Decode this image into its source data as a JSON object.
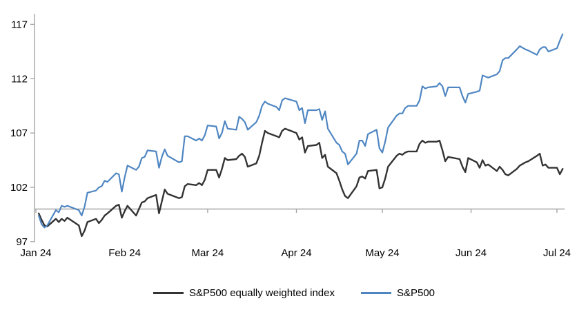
{
  "chart_data": {
    "type": "line",
    "title": "",
    "xlabel": "",
    "ylabel": "",
    "grid": "off",
    "legend_position": "bottom-center",
    "baseline_value": 100,
    "colors": {
      "axis": "#a6a6a6",
      "baseline": "#a6a6a6",
      "tick_label": "#000000",
      "eqw_line": "#333333",
      "sp500_line": "#4f86c2"
    },
    "y_axis": {
      "ticks": [
        97,
        102,
        107,
        112,
        117
      ],
      "min": 97,
      "max": 117
    },
    "x_axis": {
      "tick_labels": [
        "Jan 24",
        "Feb 24",
        "Mar 24",
        "Apr 24",
        "May 24",
        "Jun 24",
        "Jul 24"
      ],
      "tick_month_start_day_of_year": [
        0,
        31,
        60,
        91,
        121,
        152,
        182
      ]
    },
    "dates": [
      "1-2",
      "1-3",
      "1-4",
      "1-5",
      "1-8",
      "1-9",
      "1-10",
      "1-11",
      "1-12",
      "1-16",
      "1-17",
      "1-18",
      "1-19",
      "1-22",
      "1-23",
      "1-24",
      "1-25",
      "1-26",
      "1-29",
      "1-30",
      "1-31",
      "2-1",
      "2-2",
      "2-5",
      "2-6",
      "2-7",
      "2-8",
      "2-9",
      "2-12",
      "2-13",
      "2-14",
      "2-15",
      "2-16",
      "2-20",
      "2-21",
      "2-22",
      "2-23",
      "2-26",
      "2-27",
      "2-28",
      "2-29",
      "3-1",
      "3-4",
      "3-5",
      "3-6",
      "3-7",
      "3-8",
      "3-11",
      "3-12",
      "3-13",
      "3-14",
      "3-15",
      "3-18",
      "3-19",
      "3-20",
      "3-21",
      "3-22",
      "3-25",
      "3-26",
      "3-27",
      "3-28",
      "4-1",
      "4-2",
      "4-3",
      "4-4",
      "4-5",
      "4-8",
      "4-9",
      "4-10",
      "4-11",
      "4-12",
      "4-15",
      "4-16",
      "4-17",
      "4-18",
      "4-19",
      "4-22",
      "4-23",
      "4-24",
      "4-25",
      "4-26",
      "4-29",
      "4-30",
      "5-1",
      "5-2",
      "5-3",
      "5-6",
      "5-7",
      "5-8",
      "5-9",
      "5-10",
      "5-13",
      "5-14",
      "5-15",
      "5-16",
      "5-17",
      "5-20",
      "5-21",
      "5-22",
      "5-23",
      "5-24",
      "5-28",
      "5-29",
      "5-30",
      "5-31",
      "6-3",
      "6-4",
      "6-5",
      "6-6",
      "6-7",
      "6-10",
      "6-11",
      "6-12",
      "6-13",
      "6-14",
      "6-17",
      "6-18",
      "6-20",
      "6-21",
      "6-24",
      "6-25",
      "6-26",
      "6-27",
      "6-28",
      "7-1",
      "7-2",
      "7-3"
    ],
    "series": [
      {
        "name": "S&P500 equally weighted index",
        "color": "#333333",
        "values": [
          99.6,
          99.0,
          98.5,
          98.4,
          99.1,
          98.8,
          99.1,
          98.9,
          99.2,
          98.5,
          97.5,
          98.0,
          98.8,
          99.1,
          98.7,
          99.0,
          99.4,
          99.6,
          100.3,
          100.4,
          99.2,
          99.8,
          100.3,
          99.4,
          100.0,
          100.6,
          100.7,
          101.0,
          101.3,
          99.6,
          100.7,
          101.8,
          101.4,
          101.0,
          101.1,
          102.1,
          102.3,
          102.2,
          102.4,
          102.2,
          102.7,
          103.6,
          103.6,
          102.9,
          103.7,
          104.7,
          104.5,
          104.6,
          104.9,
          105.1,
          104.8,
          103.9,
          104.2,
          104.9,
          106.1,
          107.2,
          107.0,
          106.7,
          106.6,
          107.2,
          107.4,
          107.0,
          106.4,
          106.6,
          105.2,
          105.8,
          105.9,
          106.1,
          104.7,
          105.0,
          103.9,
          103.3,
          102.6,
          101.8,
          101.2,
          101.0,
          102.1,
          102.9,
          103.0,
          102.8,
          103.5,
          103.6,
          101.9,
          102.0,
          102.8,
          103.9,
          104.9,
          105.1,
          105.0,
          105.2,
          105.3,
          105.3,
          106.0,
          106.3,
          106.1,
          106.2,
          106.2,
          106.3,
          105.4,
          104.4,
          104.8,
          104.6,
          103.9,
          103.4,
          104.7,
          104.3,
          103.8,
          104.5,
          104.0,
          104.1,
          103.5,
          103.9,
          103.6,
          103.2,
          103.1,
          103.7,
          104.0,
          104.3,
          104.4,
          104.9,
          105.1,
          104.0,
          104.1,
          103.8,
          103.8,
          103.2,
          103.7
        ]
      },
      {
        "name": "S&P500",
        "color": "#4f86c2",
        "values": [
          99.4,
          98.6,
          98.3,
          98.5,
          99.9,
          99.7,
          100.3,
          100.2,
          100.3,
          99.9,
          99.4,
          100.2,
          101.5,
          101.7,
          102.0,
          102.1,
          102.6,
          102.5,
          103.3,
          103.2,
          101.6,
          102.9,
          104.0,
          103.6,
          103.9,
          104.7,
          104.8,
          105.4,
          105.3,
          103.8,
          104.8,
          105.5,
          104.9,
          104.3,
          104.4,
          106.7,
          106.7,
          106.3,
          106.5,
          106.3,
          106.8,
          107.7,
          107.6,
          106.5,
          107.0,
          108.1,
          107.4,
          107.3,
          108.5,
          108.3,
          108.0,
          107.3,
          108.0,
          108.6,
          109.5,
          109.9,
          109.7,
          109.4,
          109.1,
          110.0,
          110.2,
          109.9,
          109.1,
          109.3,
          107.9,
          109.1,
          109.1,
          109.2,
          108.2,
          109.0,
          107.4,
          106.1,
          105.9,
          105.3,
          105.1,
          104.1,
          105.1,
          106.3,
          106.3,
          105.8,
          106.9,
          107.3,
          105.6,
          105.2,
          106.2,
          107.5,
          108.6,
          108.8,
          108.8,
          109.3,
          109.5,
          109.5,
          110.0,
          111.3,
          111.1,
          111.2,
          111.3,
          111.6,
          111.3,
          110.4,
          111.2,
          111.2,
          110.4,
          109.8,
          110.6,
          110.8,
          110.9,
          112.3,
          112.2,
          112.1,
          112.4,
          112.7,
          113.7,
          113.9,
          113.9,
          114.7,
          115.0,
          114.7,
          114.6,
          114.2,
          114.7,
          114.9,
          114.9,
          114.5,
          114.8,
          115.5,
          116.1
        ]
      }
    ]
  }
}
